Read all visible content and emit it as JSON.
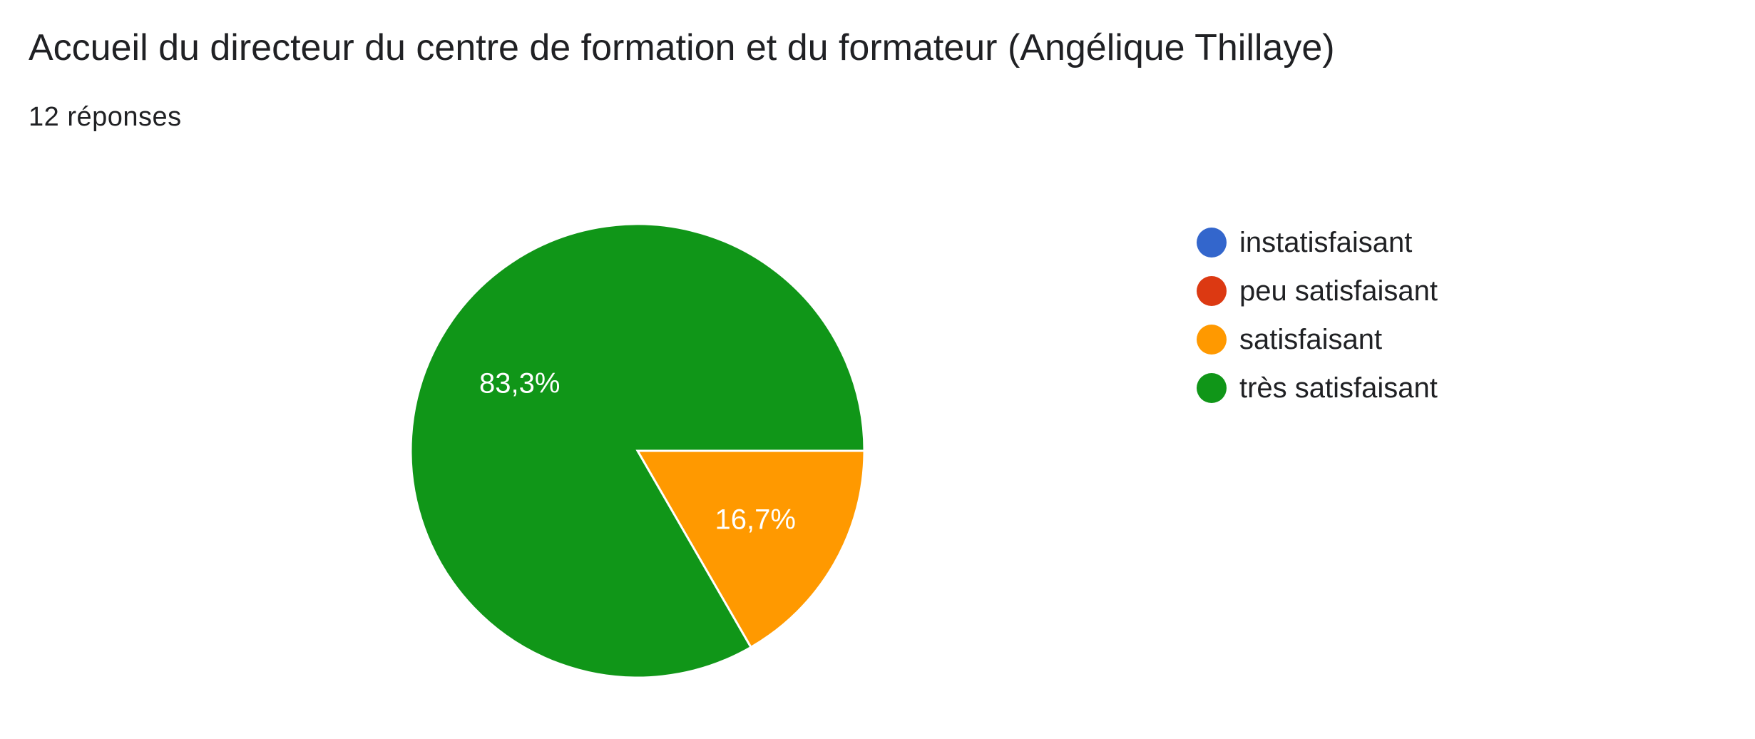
{
  "header": {
    "title": "Accueil du directeur du centre de formation et du formateur (Angélique Thillaye)",
    "subtitle": "12 réponses"
  },
  "chart_data": {
    "type": "pie",
    "title": "Accueil du directeur du centre de formation et du formateur (Angélique Thillaye)",
    "subtitle": "12 réponses",
    "categories": [
      "instatisfaisant",
      "peu satisfaisant",
      "satisfaisant",
      "très satisfaisant"
    ],
    "values": [
      0,
      0,
      2,
      10
    ],
    "percent_labels": [
      "0%",
      "0%",
      "16,7%",
      "83,3%"
    ],
    "colors": [
      "#3366cc",
      "#dc3912",
      "#ff9900",
      "#109618"
    ],
    "legend_position": "right",
    "start_angle_deg": 90,
    "direction": "clockwise"
  }
}
